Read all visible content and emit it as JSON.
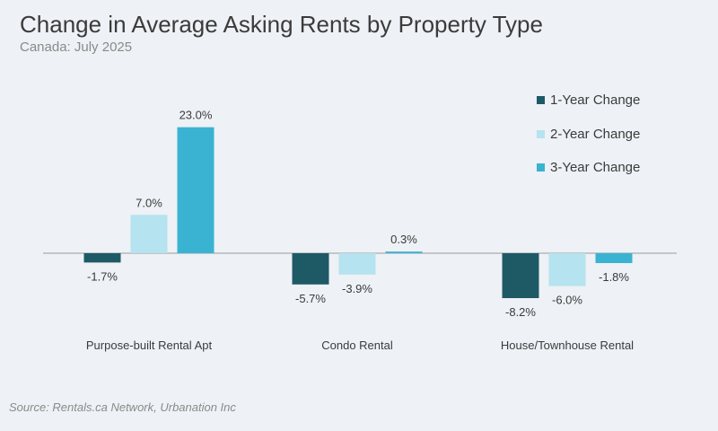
{
  "title": "Change in Average Asking Rents by Property Type",
  "subtitle": "Canada: July 2025",
  "source": "Source: Rentals.ca Network, Urbanation Inc",
  "colors": {
    "one_year": "#1d5a66",
    "two_year": "#b5e3ef",
    "three_year": "#3ab3d2",
    "text": "#3b3b3b",
    "axis": "#9a9a9a"
  },
  "chart_data": {
    "type": "bar",
    "categories": [
      "Purpose-built Rental Apt",
      "Condo Rental",
      "House/Townhouse Rental"
    ],
    "series": [
      {
        "name": "1-Year Change",
        "values": [
          -1.7,
          -5.7,
          -8.2
        ],
        "labels": [
          "-1.7%",
          "-5.7%",
          "-8.2%"
        ]
      },
      {
        "name": "2-Year Change",
        "values": [
          7.0,
          -3.9,
          -6.0
        ],
        "labels": [
          "7.0%",
          "-3.9%",
          "-6.0%"
        ]
      },
      {
        "name": "3-Year Change",
        "values": [
          23.0,
          0.3,
          -1.8
        ],
        "labels": [
          "23.0%",
          "0.3%",
          "-1.8%"
        ]
      }
    ],
    "legend_position": "top-right",
    "grid": false
  }
}
